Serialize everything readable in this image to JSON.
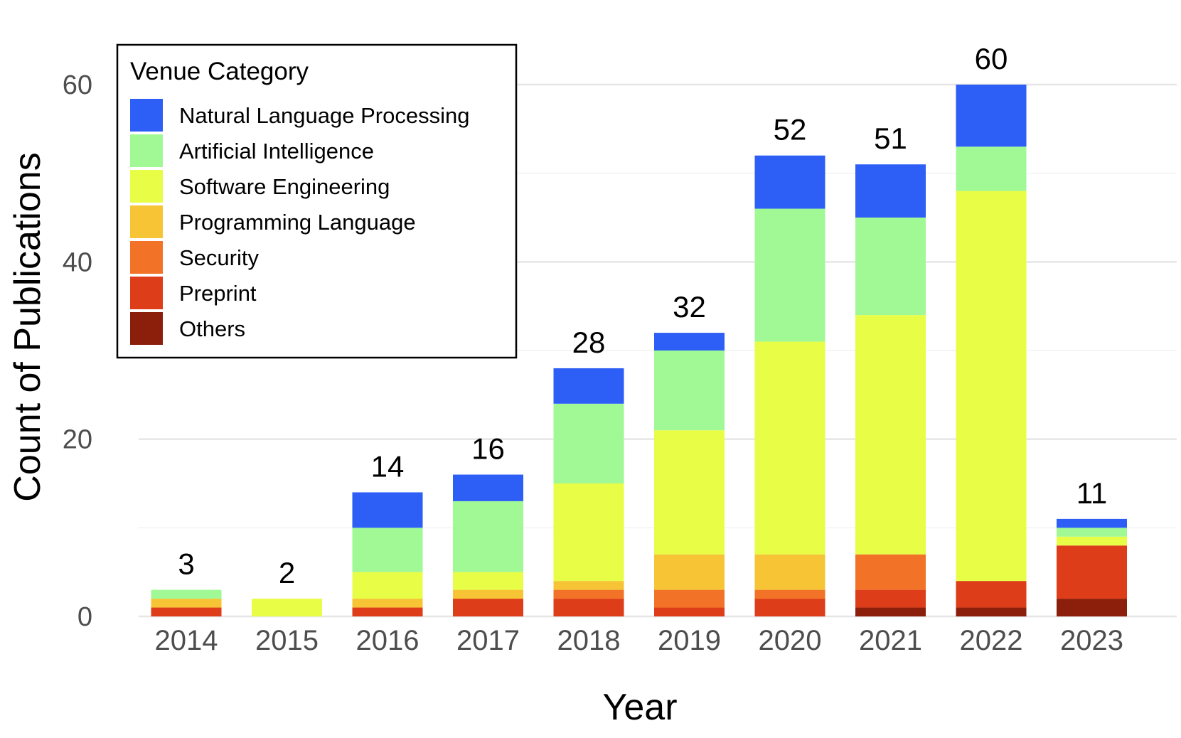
{
  "chart_data": {
    "type": "bar",
    "stacked": true,
    "xlabel": "Year",
    "ylabel": "Count of Publications",
    "ylim": [
      0,
      65
    ],
    "yticks": [
      0,
      20,
      40,
      60
    ],
    "grid": true,
    "legend": {
      "title": "Venue Category",
      "placement": "top-left"
    },
    "categories": [
      "2014",
      "2015",
      "2016",
      "2017",
      "2018",
      "2019",
      "2020",
      "2021",
      "2022",
      "2023"
    ],
    "totals": [
      3,
      2,
      14,
      16,
      28,
      32,
      52,
      51,
      60,
      11
    ],
    "series": [
      {
        "name": "Natural Language Processing",
        "color": "#2d5ff7",
        "values": [
          0,
          0,
          4,
          3,
          4,
          2,
          6,
          6,
          7,
          1
        ]
      },
      {
        "name": "Artificial Intelligence",
        "color": "#a1f995",
        "values": [
          1,
          0,
          5,
          8,
          9,
          9,
          15,
          11,
          5,
          1
        ]
      },
      {
        "name": "Software Engineering",
        "color": "#e8fd46",
        "values": [
          0,
          2,
          3,
          2,
          11,
          14,
          24,
          27,
          44,
          1
        ]
      },
      {
        "name": "Programming Language",
        "color": "#f6c435",
        "values": [
          1,
          0,
          1,
          1,
          1,
          4,
          4,
          0,
          0,
          0
        ]
      },
      {
        "name": "Security",
        "color": "#f27327",
        "values": [
          0,
          0,
          0,
          0,
          1,
          2,
          1,
          4,
          0,
          0
        ]
      },
      {
        "name": "Preprint",
        "color": "#dd3d18",
        "values": [
          1,
          0,
          1,
          2,
          2,
          1,
          2,
          2,
          3,
          6
        ]
      },
      {
        "name": "Others",
        "color": "#8b1f0c",
        "values": [
          0,
          0,
          0,
          0,
          0,
          0,
          0,
          1,
          1,
          2
        ]
      }
    ]
  }
}
